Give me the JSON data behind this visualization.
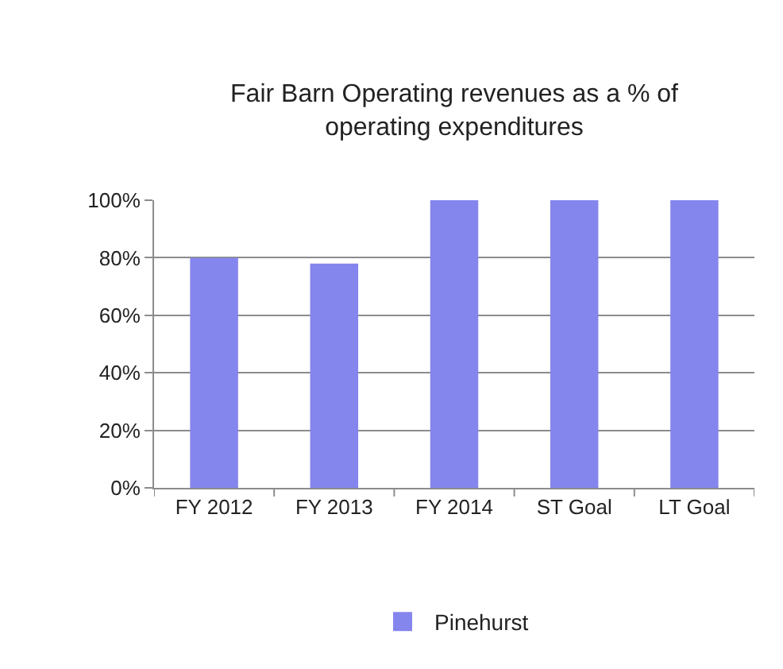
{
  "chart_data": {
    "type": "bar",
    "title": "Fair Barn Operating revenues as a % of operating expenditures",
    "categories": [
      "FY 2012",
      "FY 2013",
      "FY 2014",
      "ST Goal",
      "LT Goal"
    ],
    "series": [
      {
        "name": "Pinehurst",
        "color": "#8585ee",
        "values": [
          80,
          78,
          100,
          100,
          100
        ]
      }
    ],
    "ylim": [
      0,
      100
    ],
    "yticks": [
      {
        "value": 0,
        "label": "0%"
      },
      {
        "value": 20,
        "label": "20%"
      },
      {
        "value": 40,
        "label": "40%"
      },
      {
        "value": 60,
        "label": "60%"
      },
      {
        "value": 80,
        "label": "80%"
      },
      {
        "value": 100,
        "label": "100%"
      }
    ],
    "grid": "y",
    "legend": "bottom"
  }
}
